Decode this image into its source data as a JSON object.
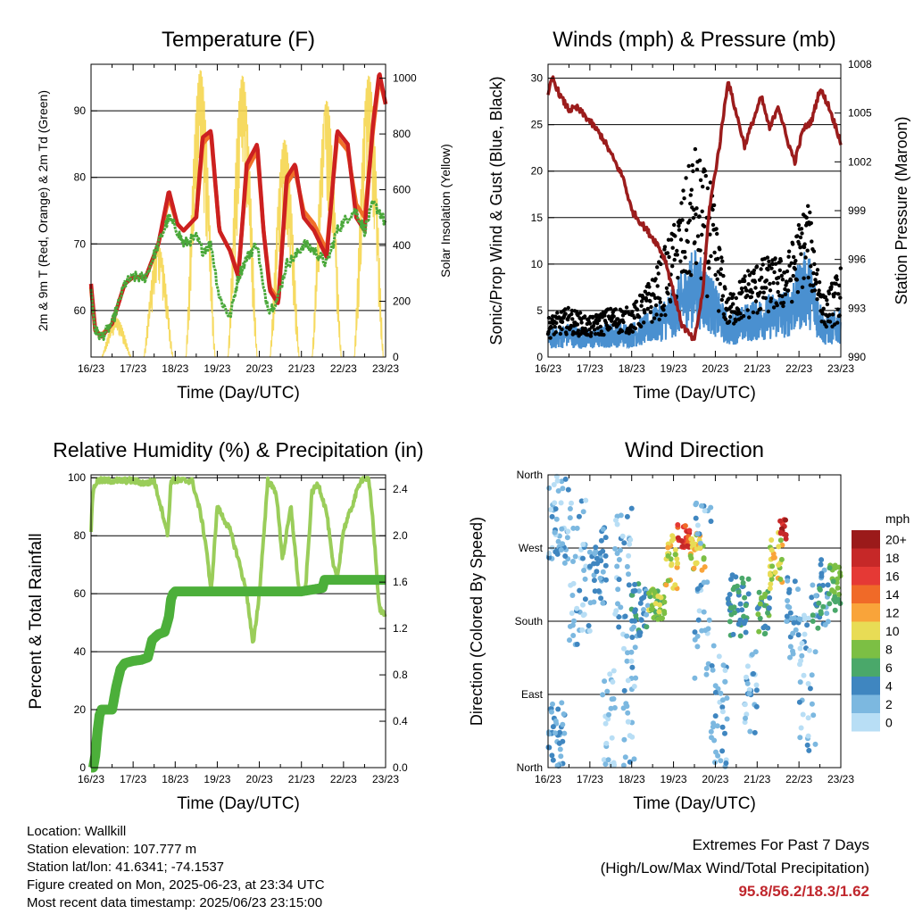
{
  "colors": {
    "t2m": "#cc2020",
    "t9m": "#f07028",
    "td": "#4aa83a",
    "solar": "#f5d650",
    "gust": "#000000",
    "wind": "#4a90d0",
    "pressure": "#9b1c1c",
    "rh": "#9acd5a",
    "precip": "#4caf3a"
  },
  "x_ticks": [
    "16/23",
    "17/23",
    "18/23",
    "19/23",
    "20/23",
    "21/23",
    "22/23",
    "23/23"
  ],
  "chart_data": [
    {
      "id": "temperature",
      "type": "line",
      "title": "Temperature (F)",
      "xlabel": "Time (Day/UTC)",
      "ylabel": "2m & 9m T (Red, Orange) & 2m Td (Green)",
      "ylabel_right": "Solar Insolation (Yellow)",
      "ylim": [
        53,
        97
      ],
      "ylim_right": [
        0,
        1050
      ],
      "yticks": [
        60,
        70,
        80,
        90
      ],
      "yticks_right": [
        0,
        200,
        400,
        600,
        800,
        1000
      ],
      "grid": true,
      "x": [
        0,
        0.1,
        0.25,
        0.5,
        0.8,
        1,
        1.3,
        1.6,
        1.85,
        2.05,
        2.2,
        2.5,
        2.65,
        2.85,
        3.05,
        3.3,
        3.5,
        3.7,
        3.95,
        4.1,
        4.25,
        4.45,
        4.65,
        4.85,
        5.05,
        5.3,
        5.6,
        5.85,
        6.1,
        6.3,
        6.5,
        6.7,
        6.85,
        7
      ],
      "series": [
        {
          "name": "2m T",
          "values": [
            64,
            57,
            56,
            58,
            64,
            65,
            65,
            70,
            78,
            73,
            72,
            74,
            86,
            87,
            72,
            69,
            65,
            82,
            85,
            72,
            63,
            61,
            80,
            82,
            74,
            72,
            68,
            87,
            85,
            74,
            72,
            88,
            95.8,
            91
          ]
        },
        {
          "name": "9m T",
          "values": [
            63.5,
            57,
            56.3,
            58,
            64,
            65,
            65,
            70,
            77,
            73,
            72,
            74,
            85,
            86.5,
            72,
            69,
            65.5,
            81,
            84,
            72,
            63.5,
            61.5,
            79,
            81,
            75,
            73,
            69,
            86,
            84,
            76,
            74,
            87,
            95,
            91
          ]
        },
        {
          "name": "2m Td",
          "values": [
            63,
            57,
            56,
            58,
            64,
            65,
            65,
            70,
            74,
            72,
            70,
            71,
            69,
            70,
            62,
            59,
            65,
            68,
            70,
            63,
            60,
            62,
            67,
            68,
            70,
            69,
            67,
            72,
            74,
            75,
            72,
            76,
            75,
            73
          ]
        }
      ],
      "solar_peaks": [
        {
          "day": 0.6,
          "value": 140
        },
        {
          "day": 1.6,
          "value": 400
        },
        {
          "day": 2.6,
          "value": 1030
        },
        {
          "day": 3.6,
          "value": 1010
        },
        {
          "day": 4.6,
          "value": 780
        },
        {
          "day": 5.6,
          "value": 920
        },
        {
          "day": 6.6,
          "value": 1010
        }
      ]
    },
    {
      "id": "winds",
      "type": "scatter",
      "title": "Winds (mph) & Pressure (mb)",
      "xlabel": "Time (Day/UTC)",
      "ylabel": "Sonic/Prop Wind & Gust (Blue, Black)",
      "ylabel_right": "Station Pressure (Maroon)",
      "ylim": [
        0,
        31.5
      ],
      "ylim_right": [
        990,
        1008
      ],
      "yticks": [
        0,
        5,
        10,
        15,
        20,
        25,
        30
      ],
      "yticks_right": [
        990,
        993,
        996,
        999,
        1002,
        1005,
        1008
      ],
      "grid": true,
      "wind_envelope": {
        "x": [
          0,
          0.5,
          1,
          1.5,
          2,
          2.5,
          3,
          3.5,
          3.9,
          4.3,
          4.8,
          5.2,
          5.7,
          6.2,
          6.6,
          7
        ],
        "mean": [
          2,
          2.5,
          2,
          2.5,
          2.5,
          3.5,
          5,
          8,
          6,
          3,
          4,
          4.5,
          5,
          8,
          3,
          3.5
        ],
        "gust": [
          4,
          5,
          4,
          5,
          5,
          8,
          13,
          21,
          17,
          6,
          9,
          10,
          10,
          16,
          6,
          9
        ]
      },
      "pressure": {
        "x": [
          0,
          0.1,
          0.3,
          0.5,
          0.7,
          1,
          1.3,
          1.5,
          1.8,
          2,
          2.3,
          2.6,
          2.8,
          3,
          3.2,
          3.4,
          3.5,
          3.7,
          3.85,
          4.1,
          4.3,
          4.5,
          4.7,
          4.9,
          5.1,
          5.3,
          5.5,
          5.7,
          5.9,
          6.1,
          6.3,
          6.5,
          6.7,
          6.9,
          7
        ],
        "values": [
          1006,
          1007.2,
          1006,
          1005.2,
          1005.3,
          1004.5,
          1003.5,
          1002.5,
          1001,
          999,
          998,
          997,
          996,
          994,
          992,
          991.3,
          991,
          994,
          999,
          1003,
          1007,
          1005,
          1003,
          1004.5,
          1006,
          1004,
          1005.5,
          1003.5,
          1002,
          1004,
          1004.5,
          1006.5,
          1005.5,
          1004,
          1003.2
        ]
      }
    },
    {
      "id": "humidity",
      "type": "line",
      "title": "Relative Humidity (%) & Precipitation (in)",
      "xlabel": "Time (Day/UTC)",
      "ylabel": "Percent & Total Rainfall",
      "ylim": [
        0,
        101
      ],
      "ylim_right": [
        0,
        2.525
      ],
      "yticks": [
        0,
        20,
        40,
        60,
        80,
        100
      ],
      "yticks_right": [
        0.0,
        0.4,
        0.8,
        1.2,
        1.6,
        2.0,
        2.4
      ],
      "grid": true,
      "series": [
        {
          "name": "Relative Humidity",
          "x": [
            0,
            0.05,
            0.15,
            0.6,
            1,
            1.3,
            1.5,
            1.75,
            1.82,
            1.9,
            2.2,
            2.4,
            2.6,
            2.75,
            2.85,
            3.0,
            3.3,
            3.5,
            3.7,
            3.85,
            4.0,
            4.2,
            4.4,
            4.55,
            4.75,
            4.95,
            5.1,
            5.25,
            5.4,
            5.6,
            5.75,
            5.85,
            6.0,
            6.2,
            6.4,
            6.5,
            6.6,
            6.7,
            6.85,
            7
          ],
          "values": [
            82,
            96,
            99,
            99,
            99,
            98,
            99,
            85,
            80,
            99,
            99,
            99,
            88,
            75,
            60,
            90,
            82,
            72,
            60,
            42,
            60,
            99,
            95,
            72,
            90,
            60,
            62,
            95,
            98,
            88,
            70,
            65,
            82,
            90,
            99,
            100,
            99,
            85,
            55,
            52
          ]
        },
        {
          "name": "Total Precipitation",
          "x": [
            0,
            0.05,
            0.1,
            0.15,
            0.2,
            0.25,
            0.5,
            0.6,
            0.7,
            0.8,
            1,
            1.2,
            1.35,
            1.45,
            1.6,
            1.75,
            1.85,
            1.9,
            1.95,
            2.0,
            2.5,
            3,
            4,
            5,
            5.5,
            5.55,
            6,
            7
          ],
          "values": [
            0,
            0,
            0.1,
            0.3,
            0.45,
            0.5,
            0.5,
            0.7,
            0.85,
            0.9,
            0.92,
            0.93,
            0.95,
            1.1,
            1.15,
            1.17,
            1.3,
            1.45,
            1.5,
            1.52,
            1.52,
            1.52,
            1.52,
            1.52,
            1.55,
            1.62,
            1.62,
            1.62
          ]
        }
      ]
    },
    {
      "id": "direction",
      "type": "scatter",
      "title": "Wind Direction",
      "xlabel": "Time (Day/UTC)",
      "ylabel": "Direction (Colored By Speed)",
      "ylim": [
        0,
        360
      ],
      "ytick_values": [
        0,
        90,
        180,
        270,
        360
      ],
      "ytick_labels": [
        "North",
        "East",
        "South",
        "West",
        "North"
      ],
      "grid": true,
      "legend": {
        "title": "mph",
        "labels": [
          "20+",
          "18",
          "16",
          "14",
          "12",
          "10",
          "8",
          "6",
          "4",
          "2",
          "0"
        ],
        "colors": [
          "#9b1a1a",
          "#c62828",
          "#e53935",
          "#f06a28",
          "#f9a43a",
          "#e8dc55",
          "#7cbf44",
          "#4aa86a",
          "#3f86c0",
          "#7cb8e0",
          "#b8def5"
        ],
        "placement": "right"
      },
      "clusters": [
        {
          "day0": 0.0,
          "day1": 0.4,
          "dir0": 0,
          "dir1": 80,
          "speed": 3
        },
        {
          "day0": 0.0,
          "day1": 0.5,
          "dir0": 250,
          "dir1": 360,
          "speed": 2
        },
        {
          "day0": 0.5,
          "day1": 1.0,
          "dir0": 150,
          "dir1": 330,
          "speed": 2
        },
        {
          "day0": 1.0,
          "day1": 1.4,
          "dir0": 200,
          "dir1": 300,
          "speed": 3
        },
        {
          "day0": 1.3,
          "day1": 1.6,
          "dir0": 0,
          "dir1": 130,
          "speed": 1
        },
        {
          "day0": 1.6,
          "day1": 2.0,
          "dir0": 150,
          "dir1": 330,
          "speed": 2
        },
        {
          "day0": 1.8,
          "day1": 2.1,
          "dir0": 0,
          "dir1": 150,
          "speed": 2
        },
        {
          "day0": 2.0,
          "day1": 2.4,
          "dir0": 160,
          "dir1": 230,
          "speed": 4
        },
        {
          "day0": 2.4,
          "day1": 2.8,
          "dir0": 180,
          "dir1": 220,
          "speed": 8
        },
        {
          "day0": 2.8,
          "day1": 3.1,
          "dir0": 220,
          "dir1": 290,
          "speed": 10
        },
        {
          "day0": 3.1,
          "day1": 3.4,
          "dir0": 270,
          "dir1": 300,
          "speed": 16
        },
        {
          "day0": 3.4,
          "day1": 3.75,
          "dir0": 240,
          "dir1": 290,
          "speed": 10
        },
        {
          "day0": 3.5,
          "day1": 3.9,
          "dir0": 100,
          "dir1": 330,
          "speed": 2
        },
        {
          "day0": 3.9,
          "day1": 4.3,
          "dir0": 0,
          "dir1": 160,
          "speed": 2
        },
        {
          "day0": 4.3,
          "day1": 4.8,
          "dir0": 160,
          "dir1": 240,
          "speed": 5
        },
        {
          "day0": 4.7,
          "day1": 5.0,
          "dir0": 40,
          "dir1": 150,
          "speed": 2
        },
        {
          "day0": 5.0,
          "day1": 5.3,
          "dir0": 160,
          "dir1": 220,
          "speed": 6
        },
        {
          "day0": 5.3,
          "day1": 5.6,
          "dir0": 220,
          "dir1": 290,
          "speed": 10
        },
        {
          "day0": 5.55,
          "day1": 5.7,
          "dir0": 280,
          "dir1": 305,
          "speed": 18
        },
        {
          "day0": 5.7,
          "day1": 6.0,
          "dir0": 130,
          "dir1": 240,
          "speed": 3
        },
        {
          "day0": 6.0,
          "day1": 6.4,
          "dir0": 20,
          "dir1": 190,
          "speed": 2
        },
        {
          "day0": 6.3,
          "day1": 6.7,
          "dir0": 170,
          "dir1": 260,
          "speed": 4
        },
        {
          "day0": 6.7,
          "day1": 7.0,
          "dir0": 190,
          "dir1": 250,
          "speed": 7
        }
      ]
    }
  ],
  "info": {
    "location": "Location: Wallkill",
    "elevation": "Station elevation: 107.777 m",
    "latlon": "Station lat/lon: 41.6341; -74.1537",
    "created": "Figure created on Mon, 2025-06-23, at 23:34 UTC",
    "timestamp": "Most recent data timestamp: 2025/06/23 23:15:00"
  },
  "extremes": {
    "line1": "Extremes For Past 7 Days",
    "line2": "(High/Low/Max Wind/Total Precipitation)",
    "values": "95.8/56.2/18.3/1.62"
  }
}
